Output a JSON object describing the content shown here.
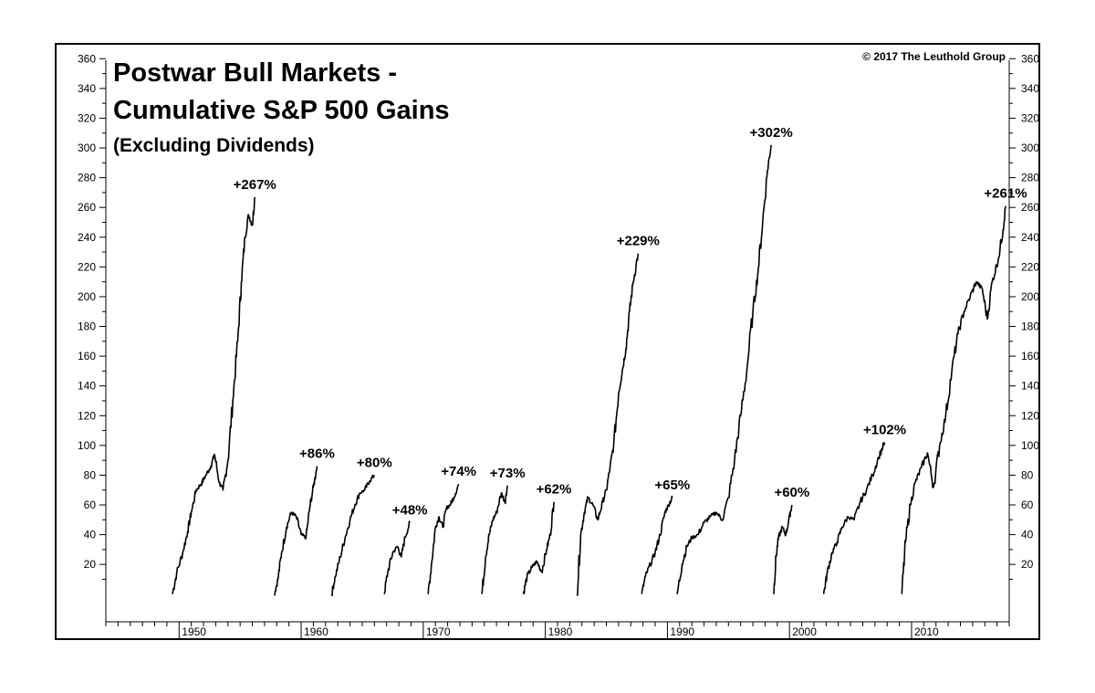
{
  "chart_data": {
    "type": "line",
    "title": "Postwar Bull Markets -",
    "title_line2": "Cumulative S&P 500 Gains",
    "subtitle": "(Excluding Dividends)",
    "copyright": "© 2017 The Leuthold  Group",
    "xlabel": "",
    "ylabel": "",
    "xlim": [
      1944.0,
      2018.0
    ],
    "ylim": [
      -2,
      370
    ],
    "x_ticks": [
      1950,
      1960,
      1970,
      1980,
      1990,
      2000,
      2010
    ],
    "y_ticks": [
      20,
      40,
      60,
      80,
      100,
      120,
      140,
      160,
      180,
      200,
      220,
      240,
      260,
      280,
      300,
      320,
      340,
      360
    ],
    "grid": false,
    "series": [
      {
        "label": "+267%",
        "peak": 267,
        "x": [
          1949.45,
          1949.8,
          1950.3,
          1950.7,
          1951.0,
          1951.4,
          1951.8,
          1952.2,
          1952.6,
          1952.9,
          1953.3,
          1953.6,
          1954.0,
          1954.4,
          1954.8,
          1955.1,
          1955.4,
          1955.7,
          1956.0,
          1956.2
        ],
        "y": [
          0,
          14,
          28,
          42,
          55,
          70,
          74,
          80,
          86,
          94,
          75,
          70,
          90,
          130,
          170,
          210,
          240,
          255,
          248,
          267
        ]
      },
      {
        "label": "+86%",
        "peak": 86,
        "x": [
          1957.8,
          1958.1,
          1958.4,
          1958.8,
          1959.2,
          1959.6,
          1960.0,
          1960.4,
          1960.7,
          1961.0,
          1961.3
        ],
        "y": [
          0,
          10,
          28,
          45,
          55,
          52,
          40,
          38,
          58,
          72,
          86
        ]
      },
      {
        "label": "+80%",
        "peak": 80,
        "x": [
          1962.5,
          1962.8,
          1963.2,
          1963.6,
          1964.0,
          1964.4,
          1964.8,
          1965.2,
          1965.6,
          1966.0
        ],
        "y": [
          0,
          12,
          25,
          38,
          50,
          60,
          68,
          70,
          76,
          80
        ]
      },
      {
        "label": "+48%",
        "peak": 48,
        "x": [
          1966.8,
          1967.1,
          1967.5,
          1967.9,
          1968.2,
          1968.5,
          1968.9
        ],
        "y": [
          0,
          15,
          28,
          32,
          25,
          38,
          48
        ]
      },
      {
        "label": "+74%",
        "peak": 74,
        "x": [
          1970.4,
          1970.7,
          1971.0,
          1971.3,
          1971.6,
          1971.9,
          1972.2,
          1972.5,
          1972.9
        ],
        "y": [
          0,
          22,
          45,
          52,
          45,
          58,
          60,
          65,
          74
        ]
      },
      {
        "label": "+73%",
        "peak": 73,
        "x": [
          1974.8,
          1975.1,
          1975.4,
          1975.7,
          1976.0,
          1976.4,
          1976.7,
          1976.9
        ],
        "y": [
          0,
          25,
          40,
          50,
          55,
          68,
          62,
          73
        ]
      },
      {
        "label": "+62%",
        "peak": 62,
        "x": [
          1978.2,
          1978.5,
          1978.9,
          1979.3,
          1979.7,
          1980.1,
          1980.4,
          1980.7
        ],
        "y": [
          0,
          12,
          18,
          22,
          15,
          30,
          40,
          62
        ]
      },
      {
        "label": "+229%",
        "peak": 229,
        "x": [
          1982.6,
          1982.9,
          1983.2,
          1983.5,
          1983.9,
          1984.3,
          1984.7,
          1985.0,
          1985.3,
          1985.6,
          1986.0,
          1986.3,
          1986.6,
          1986.9,
          1987.2,
          1987.6
        ],
        "y": [
          0,
          40,
          55,
          65,
          60,
          50,
          62,
          70,
          85,
          100,
          135,
          150,
          165,
          190,
          210,
          229
        ]
      },
      {
        "label": "+65%",
        "peak": 65,
        "x": [
          1987.9,
          1988.2,
          1988.6,
          1989.0,
          1989.4,
          1989.8,
          1990.1,
          1990.4
        ],
        "y": [
          0,
          12,
          20,
          28,
          40,
          55,
          60,
          65
        ]
      },
      {
        "label": "+302%",
        "peak": 302,
        "x": [
          1990.8,
          1991.2,
          1991.6,
          1992.0,
          1992.5,
          1993.0,
          1993.5,
          1994.0,
          1994.5,
          1995.0,
          1995.5,
          1996.0,
          1996.5,
          1997.0,
          1997.4,
          1997.8,
          1998.2,
          1998.5
        ],
        "y": [
          0,
          20,
          32,
          38,
          40,
          48,
          52,
          55,
          50,
          65,
          90,
          120,
          150,
          190,
          215,
          250,
          285,
          302
        ]
      },
      {
        "label": "+60%",
        "peak": 60,
        "x": [
          1998.7,
          1998.9,
          1999.1,
          1999.4,
          1999.7,
          2000.0,
          2000.2
        ],
        "y": [
          0,
          25,
          38,
          45,
          40,
          52,
          60
        ]
      },
      {
        "label": "+102%",
        "peak": 102,
        "x": [
          2002.8,
          2003.1,
          2003.5,
          2003.9,
          2004.3,
          2004.8,
          2005.3,
          2005.8,
          2006.3,
          2006.8,
          2007.3,
          2007.8
        ],
        "y": [
          0,
          15,
          28,
          35,
          45,
          52,
          50,
          62,
          70,
          80,
          92,
          102
        ]
      },
      {
        "label": "+261%",
        "peak": 261,
        "x": [
          2009.2,
          2009.5,
          2009.9,
          2010.3,
          2010.8,
          2011.3,
          2011.8,
          2012.3,
          2012.8,
          2013.3,
          2013.8,
          2014.3,
          2014.8,
          2015.3,
          2015.8,
          2016.2,
          2016.6,
          2017.1,
          2017.5,
          2017.7
        ],
        "y": [
          0,
          35,
          60,
          75,
          85,
          95,
          72,
          100,
          120,
          150,
          175,
          190,
          200,
          210,
          205,
          185,
          210,
          225,
          245,
          261
        ]
      }
    ]
  }
}
